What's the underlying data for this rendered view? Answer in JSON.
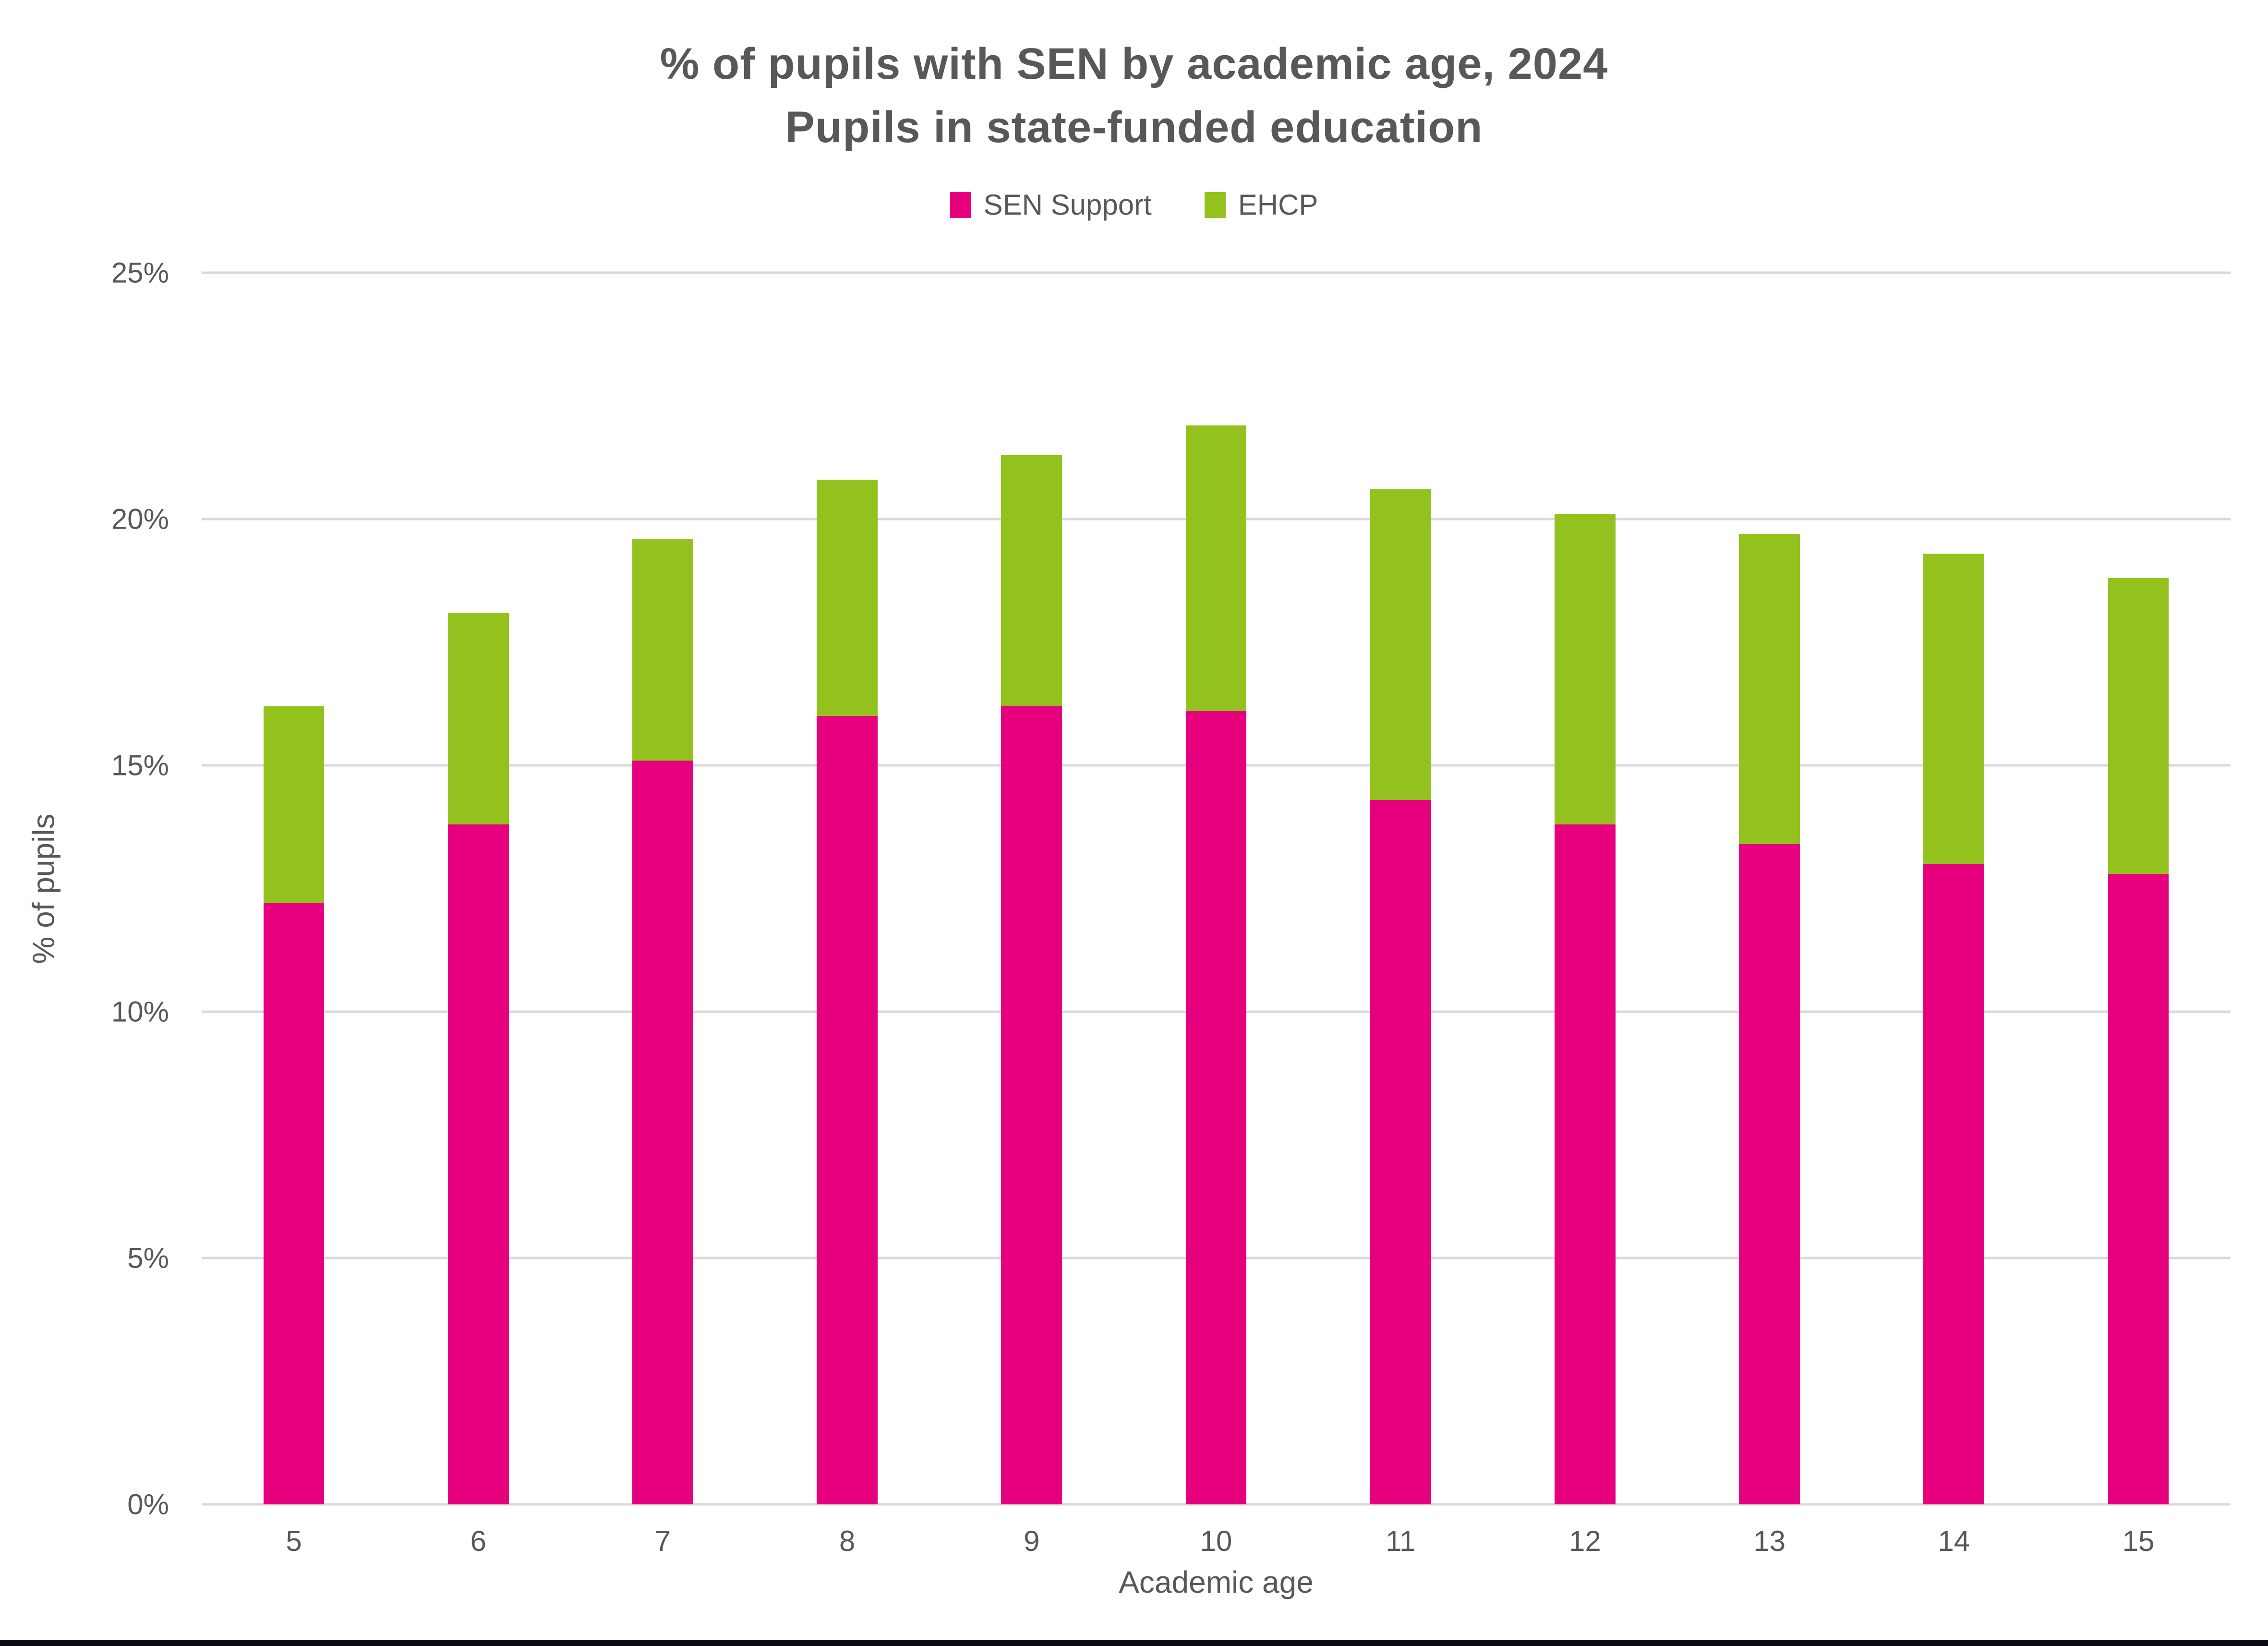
{
  "page": {
    "title_line1": "% of pupils with SEN by academic age, 2024",
    "title_line2": "Pupils in state-funded education"
  },
  "chart_data": {
    "type": "bar",
    "stacked": true,
    "title": "% of pupils with SEN by academic age, 2024",
    "subtitle": "Pupils in state-funded education",
    "xlabel": "Academic age",
    "ylabel": "% of pupils",
    "categories": [
      "5",
      "6",
      "7",
      "8",
      "9",
      "10",
      "11",
      "12",
      "13",
      "14",
      "15"
    ],
    "series": [
      {
        "name": "SEN Support",
        "color": "#E6007E",
        "values": [
          12.2,
          13.8,
          15.1,
          16.0,
          16.2,
          16.1,
          14.3,
          13.8,
          13.4,
          13.0,
          12.8
        ]
      },
      {
        "name": "EHCP",
        "color": "#93C21E",
        "values": [
          4.0,
          4.3,
          4.5,
          4.8,
          5.1,
          5.8,
          6.3,
          6.3,
          6.3,
          6.3,
          6.0
        ]
      }
    ],
    "stack_totals": [
      16.2,
      18.1,
      19.6,
      20.8,
      21.3,
      21.9,
      20.6,
      20.1,
      19.7,
      19.3,
      18.8
    ],
    "ylim": [
      0,
      25
    ],
    "yticks": [
      {
        "value": 25,
        "label": "25%"
      },
      {
        "value": 20,
        "label": "20%"
      },
      {
        "value": 15,
        "label": "15%"
      },
      {
        "value": 10,
        "label": "10%"
      },
      {
        "value": 5,
        "label": "5%"
      },
      {
        "value": 0,
        "label": "0%"
      }
    ],
    "grid": "horizontal",
    "legend_position": "top-center"
  },
  "colors": {
    "text": "#58585A",
    "gridline": "#D9D9D9",
    "background": "#FFFFFF",
    "bottom_bar": "#0B0B16"
  }
}
